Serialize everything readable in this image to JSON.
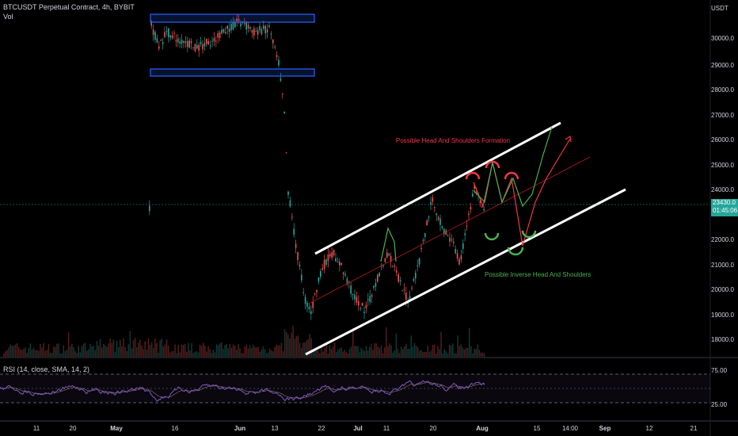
{
  "header": {
    "symbol_line": "BTCUSDT Perpetual Contract, 4h, BYBIT",
    "volume_label": "Vol",
    "rsi_label": "RSI (14, close, SMA, 14, 2)"
  },
  "price_axis": {
    "currency": "USDT",
    "labels": [
      "30000.0",
      "29000.0",
      "28000.0",
      "27000.0",
      "26000.0",
      "25000.0",
      "24000.0",
      "22000.0",
      "21000.0",
      "20000.0",
      "19000.0",
      "18000.0"
    ],
    "current_price": "23430.0",
    "countdown": "01:45:06"
  },
  "rsi_axis": {
    "labels": [
      "75.00",
      "25.00"
    ]
  },
  "time_axis": {
    "labels": [
      {
        "text": "11",
        "bold": false
      },
      {
        "text": "20",
        "bold": false
      },
      {
        "text": "May",
        "bold": true
      },
      {
        "text": "16",
        "bold": false
      },
      {
        "text": "Jun",
        "bold": true
      },
      {
        "text": "13",
        "bold": false
      },
      {
        "text": "22",
        "bold": false
      },
      {
        "text": "Jul",
        "bold": true
      },
      {
        "text": "11",
        "bold": false
      },
      {
        "text": "20",
        "bold": false
      },
      {
        "text": "Aug",
        "bold": true
      },
      {
        "text": "15",
        "bold": false
      },
      {
        "text": "14:00",
        "bold": false
      },
      {
        "text": "Sep",
        "bold": true
      },
      {
        "text": "12",
        "bold": false
      },
      {
        "text": "21",
        "bold": false
      }
    ]
  },
  "annotations": {
    "head_shoulders": "Possible Head And Shoulders Formation",
    "inverse_head_shoulders": "Possible Inverse Head And Shoulders"
  },
  "colors": {
    "background": "#000000",
    "up": "#26a69a",
    "down": "#ef5350",
    "rsi_line": "#7e57c2",
    "channel": "#ffffff",
    "zone_border": "#2962ff",
    "bearish_path": "#f23645",
    "bullish_path": "#4caf50"
  }
}
